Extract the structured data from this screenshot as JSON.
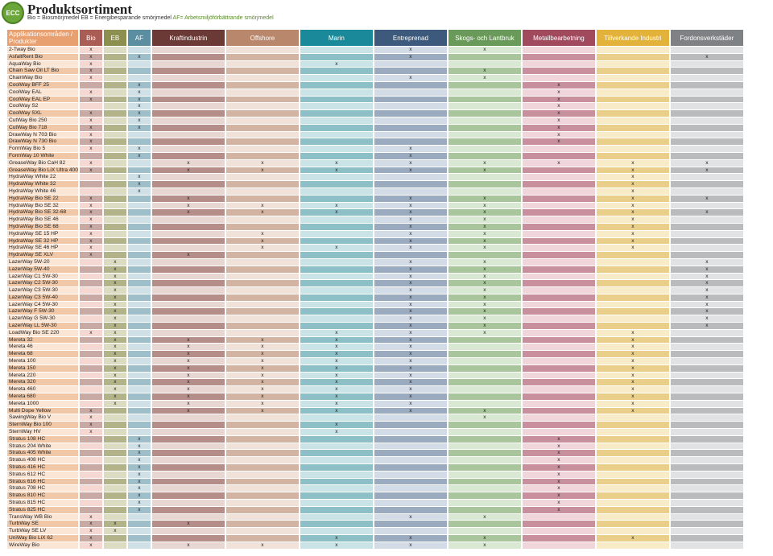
{
  "header": {
    "logo_text": "ECC",
    "title": "Produktsortiment",
    "legend_plain": "Bio = Biosmörjmedel  EB = Energibesparande smörjmedel  ",
    "legend_green": "AF= Arbetsmiljöförbättrande smörjmedel"
  },
  "table": {
    "first_header": "Applikationsområden / Produkter",
    "columns": [
      {
        "label": "Bio",
        "color": "#a95d55",
        "light": "#f6d8d2",
        "dark": "#c9a9a4"
      },
      {
        "label": "EB",
        "color": "#8d8f4f",
        "light": "#dcdcc2",
        "dark": "#b3b38a"
      },
      {
        "label": "AF",
        "color": "#5b8ea0",
        "light": "#cfe0e6",
        "dark": "#9ebfca"
      },
      {
        "label": "Kraftindustrin",
        "color": "#6b3a37",
        "light": "#e8d6d3",
        "dark": "#b58e8a"
      },
      {
        "label": "Offshore",
        "color": "#b8876c",
        "light": "#f1e2d9",
        "dark": "#d3b4a2"
      },
      {
        "label": "Marin",
        "color": "#1a8a9a",
        "light": "#c9e3e7",
        "dark": "#8dbfc6"
      },
      {
        "label": "Entreprenad",
        "color": "#3d5a7c",
        "light": "#d3dbe6",
        "dark": "#9aabc0"
      },
      {
        "label": "Skogs- och Lantbruk",
        "color": "#6a9a5a",
        "light": "#d9e8d2",
        "dark": "#a8c59b"
      },
      {
        "label": "Metallbearbetning",
        "color": "#a14a5e",
        "light": "#f0d5db",
        "dark": "#c8909c"
      },
      {
        "label": "Tillverkande Industri",
        "color": "#e2b23a",
        "light": "#f8ebc8",
        "dark": "#e9cf8a"
      },
      {
        "label": "Fordonsverkstäder",
        "color": "#7f8285",
        "light": "#e1e2e3",
        "dark": "#b9bbbd"
      }
    ],
    "rows": [
      {
        "name": "2-Tway Bio",
        "marks": [
          "x",
          "",
          "",
          "",
          "",
          "",
          "x",
          "x",
          "",
          "",
          ""
        ]
      },
      {
        "name": "AsfaltRent Bio",
        "marks": [
          "x",
          "",
          "x",
          "",
          "",
          "",
          "x",
          "",
          "",
          "",
          "x"
        ]
      },
      {
        "name": "AquaWay Bio",
        "marks": [
          "x",
          "",
          "",
          "",
          "",
          "x",
          "",
          "",
          "",
          "",
          ""
        ]
      },
      {
        "name": "Chain Saw Oil LT Bio",
        "marks": [
          "x",
          "",
          "",
          "",
          "",
          "",
          "",
          "x",
          "",
          "",
          ""
        ]
      },
      {
        "name": "ChainWay Bio",
        "marks": [
          "x",
          "",
          "",
          "",
          "",
          "",
          "x",
          "x",
          "",
          "",
          ""
        ]
      },
      {
        "name": "CoolWay BFF 25",
        "marks": [
          "",
          "",
          "x",
          "",
          "",
          "",
          "",
          "",
          "x",
          "",
          ""
        ]
      },
      {
        "name": "CoolWay EAL",
        "marks": [
          "x",
          "",
          "x",
          "",
          "",
          "",
          "",
          "",
          "x",
          "",
          ""
        ]
      },
      {
        "name": "CoolWay EAL EP",
        "marks": [
          "x",
          "",
          "x",
          "",
          "",
          "",
          "",
          "",
          "x",
          "",
          ""
        ]
      },
      {
        "name": "CoolWay S2",
        "marks": [
          "",
          "",
          "x",
          "",
          "",
          "",
          "",
          "",
          "x",
          "",
          ""
        ]
      },
      {
        "name": "CoolWay SXL",
        "marks": [
          "x",
          "",
          "x",
          "",
          "",
          "",
          "",
          "",
          "x",
          "",
          ""
        ]
      },
      {
        "name": "CutWay Bio 250",
        "marks": [
          "x",
          "",
          "x",
          "",
          "",
          "",
          "",
          "",
          "x",
          "",
          ""
        ]
      },
      {
        "name": "CutWay Bio 718",
        "marks": [
          "x",
          "",
          "x",
          "",
          "",
          "",
          "",
          "",
          "x",
          "",
          ""
        ]
      },
      {
        "name": "DrawWay N 703 Bio",
        "marks": [
          "x",
          "",
          "",
          "",
          "",
          "",
          "",
          "",
          "x",
          "",
          ""
        ]
      },
      {
        "name": "DrawWay N 730 Bio",
        "marks": [
          "x",
          "",
          "",
          "",
          "",
          "",
          "",
          "",
          "x",
          "",
          ""
        ]
      },
      {
        "name": "FormWay Bio 5",
        "marks": [
          "x",
          "",
          "x",
          "",
          "",
          "",
          "x",
          "",
          "",
          "",
          ""
        ]
      },
      {
        "name": "FormWay 10 White",
        "marks": [
          "",
          "",
          "x",
          "",
          "",
          "",
          "x",
          "",
          "",
          "",
          ""
        ]
      },
      {
        "name": "GreaseWay Bio CaH 82",
        "marks": [
          "x",
          "",
          "",
          "x",
          "x",
          "x",
          "x",
          "x",
          "x",
          "x",
          "x"
        ]
      },
      {
        "name": "GreaseWay Bio LiX Ultra 400",
        "marks": [
          "x",
          "",
          "",
          "x",
          "x",
          "x",
          "x",
          "x",
          "",
          "x",
          "x"
        ]
      },
      {
        "name": "HydraWay White 22",
        "marks": [
          "",
          "",
          "x",
          "",
          "",
          "",
          "",
          "",
          "",
          "x",
          ""
        ]
      },
      {
        "name": "HydraWay White 32",
        "marks": [
          "",
          "",
          "x",
          "",
          "",
          "",
          "",
          "",
          "",
          "x",
          ""
        ]
      },
      {
        "name": "HydraWay White 46",
        "marks": [
          "",
          "",
          "x",
          "",
          "",
          "",
          "",
          "",
          "",
          "x",
          ""
        ]
      },
      {
        "name": "HydraWay Bio SE 22",
        "marks": [
          "x",
          "",
          "",
          "x",
          "",
          "",
          "x",
          "x",
          "",
          "x",
          "x"
        ]
      },
      {
        "name": "HydraWay Bio SE 32",
        "marks": [
          "x",
          "",
          "",
          "x",
          "x",
          "x",
          "x",
          "x",
          "",
          "x",
          ""
        ]
      },
      {
        "name": "HydraWay Bio SE 32-68",
        "marks": [
          "x",
          "",
          "",
          "x",
          "x",
          "x",
          "x",
          "x",
          "",
          "x",
          "x"
        ]
      },
      {
        "name": "HydraWay Bio SE 46",
        "marks": [
          "x",
          "",
          "",
          "",
          "",
          "",
          "x",
          "x",
          "",
          "x",
          ""
        ]
      },
      {
        "name": "HydraWay Bio SE 68",
        "marks": [
          "x",
          "",
          "",
          "",
          "",
          "",
          "x",
          "x",
          "",
          "x",
          ""
        ]
      },
      {
        "name": "HydraWay SE 15 HP",
        "marks": [
          "x",
          "",
          "",
          "",
          "x",
          "",
          "x",
          "x",
          "",
          "x",
          ""
        ]
      },
      {
        "name": "HydraWay SE 32 HP",
        "marks": [
          "x",
          "",
          "",
          "",
          "x",
          "",
          "x",
          "x",
          "",
          "x",
          ""
        ]
      },
      {
        "name": "HydraWay SE 46 HP",
        "marks": [
          "x",
          "",
          "",
          "",
          "x",
          "x",
          "x",
          "x",
          "",
          "x",
          ""
        ]
      },
      {
        "name": "HydraWay SE XLV",
        "marks": [
          "x",
          "",
          "",
          "x",
          "",
          "",
          "",
          "",
          "",
          "",
          ""
        ]
      },
      {
        "name": "LazerWay 5W-20",
        "marks": [
          "",
          "x",
          "",
          "",
          "",
          "",
          "x",
          "x",
          "",
          "",
          "x"
        ]
      },
      {
        "name": "LazerWay 5W-40",
        "marks": [
          "",
          "x",
          "",
          "",
          "",
          "",
          "x",
          "x",
          "",
          "",
          "x"
        ]
      },
      {
        "name": "LazerWay C1 5W-30",
        "marks": [
          "",
          "x",
          "",
          "",
          "",
          "",
          "x",
          "x",
          "",
          "",
          "x"
        ]
      },
      {
        "name": "LazerWay C2 5W-30",
        "marks": [
          "",
          "x",
          "",
          "",
          "",
          "",
          "x",
          "x",
          "",
          "",
          "x"
        ]
      },
      {
        "name": "LazerWay C3 5W-30",
        "marks": [
          "",
          "x",
          "",
          "",
          "",
          "",
          "x",
          "x",
          "",
          "",
          "x"
        ]
      },
      {
        "name": "LazerWay C3 5W-40",
        "marks": [
          "",
          "x",
          "",
          "",
          "",
          "",
          "x",
          "x",
          "",
          "",
          "x"
        ]
      },
      {
        "name": "LazerWay C4 5W-30",
        "marks": [
          "",
          "x",
          "",
          "",
          "",
          "",
          "x",
          "x",
          "",
          "",
          "x"
        ]
      },
      {
        "name": "LazerWay F 5W-30",
        "marks": [
          "",
          "x",
          "",
          "",
          "",
          "",
          "x",
          "x",
          "",
          "",
          "x"
        ]
      },
      {
        "name": "LazerWay G 5W-30",
        "marks": [
          "",
          "x",
          "",
          "",
          "",
          "",
          "x",
          "x",
          "",
          "",
          "x"
        ]
      },
      {
        "name": "LazerWay LL 5W-30",
        "marks": [
          "",
          "x",
          "",
          "",
          "",
          "",
          "x",
          "x",
          "",
          "",
          "x"
        ]
      },
      {
        "name": "LoadWay Bio SE 220",
        "marks": [
          "x",
          "x",
          "",
          "",
          "",
          "x",
          "x",
          "x",
          "",
          "x",
          ""
        ]
      },
      {
        "name": "Mereta 32",
        "marks": [
          "",
          "x",
          "",
          "x",
          "x",
          "x",
          "x",
          "",
          "",
          "x",
          ""
        ]
      },
      {
        "name": "Mereta 46",
        "marks": [
          "",
          "x",
          "",
          "x",
          "x",
          "x",
          "x",
          "",
          "",
          "x",
          ""
        ]
      },
      {
        "name": "Mereta 68",
        "marks": [
          "",
          "x",
          "",
          "x",
          "x",
          "x",
          "x",
          "",
          "",
          "x",
          ""
        ]
      },
      {
        "name": "Mereta 100",
        "marks": [
          "",
          "x",
          "",
          "x",
          "x",
          "x",
          "x",
          "",
          "",
          "x",
          ""
        ]
      },
      {
        "name": "Mereta 150",
        "marks": [
          "",
          "x",
          "",
          "x",
          "x",
          "x",
          "x",
          "",
          "",
          "x",
          ""
        ]
      },
      {
        "name": "Mereta 220",
        "marks": [
          "",
          "x",
          "",
          "x",
          "x",
          "x",
          "x",
          "",
          "",
          "x",
          ""
        ]
      },
      {
        "name": "Mereta 320",
        "marks": [
          "",
          "x",
          "",
          "x",
          "x",
          "x",
          "x",
          "",
          "",
          "x",
          ""
        ]
      },
      {
        "name": "Mereta 460",
        "marks": [
          "",
          "x",
          "",
          "x",
          "x",
          "x",
          "x",
          "",
          "",
          "x",
          ""
        ]
      },
      {
        "name": "Mereta 680",
        "marks": [
          "",
          "x",
          "",
          "x",
          "x",
          "x",
          "x",
          "",
          "",
          "x",
          ""
        ]
      },
      {
        "name": "Mereta 1000",
        "marks": [
          "",
          "x",
          "",
          "x",
          "x",
          "x",
          "x",
          "",
          "",
          "x",
          ""
        ]
      },
      {
        "name": "Multi Dope Yellow",
        "marks": [
          "x",
          "",
          "",
          "x",
          "x",
          "x",
          "x",
          "x",
          "",
          "x",
          ""
        ]
      },
      {
        "name": "SawingWay Bio V",
        "marks": [
          "x",
          "",
          "",
          "",
          "",
          "",
          "",
          "x",
          "",
          "",
          ""
        ]
      },
      {
        "name": "SternWay Bio 100",
        "marks": [
          "x",
          "",
          "",
          "",
          "",
          "x",
          "",
          "",
          "",
          "",
          ""
        ]
      },
      {
        "name": "SternWay HV",
        "marks": [
          "x",
          "",
          "",
          "",
          "",
          "x",
          "",
          "",
          "",
          "",
          ""
        ]
      },
      {
        "name": "Stratus 108 HC",
        "marks": [
          "",
          "",
          "x",
          "",
          "",
          "",
          "",
          "",
          "x",
          "",
          ""
        ]
      },
      {
        "name": "Stratus 204 White",
        "marks": [
          "",
          "",
          "x",
          "",
          "",
          "",
          "",
          "",
          "x",
          "",
          ""
        ]
      },
      {
        "name": "Stratus 405 White",
        "marks": [
          "",
          "",
          "x",
          "",
          "",
          "",
          "",
          "",
          "x",
          "",
          ""
        ]
      },
      {
        "name": "Stratus 408 HC",
        "marks": [
          "",
          "",
          "x",
          "",
          "",
          "",
          "",
          "",
          "x",
          "",
          ""
        ]
      },
      {
        "name": "Stratus 416 HC",
        "marks": [
          "",
          "",
          "x",
          "",
          "",
          "",
          "",
          "",
          "x",
          "",
          ""
        ]
      },
      {
        "name": "Stratus 612 HC",
        "marks": [
          "",
          "",
          "x",
          "",
          "",
          "",
          "",
          "",
          "x",
          "",
          ""
        ]
      },
      {
        "name": "Stratus 616 HC",
        "marks": [
          "",
          "",
          "x",
          "",
          "",
          "",
          "",
          "",
          "x",
          "",
          ""
        ]
      },
      {
        "name": "Stratus 708 HC",
        "marks": [
          "",
          "",
          "x",
          "",
          "",
          "",
          "",
          "",
          "x",
          "",
          ""
        ]
      },
      {
        "name": "Stratus 810 HC",
        "marks": [
          "",
          "",
          "x",
          "",
          "",
          "",
          "",
          "",
          "x",
          "",
          ""
        ]
      },
      {
        "name": "Stratus 815 HC",
        "marks": [
          "",
          "",
          "x",
          "",
          "",
          "",
          "",
          "",
          "x",
          "",
          ""
        ]
      },
      {
        "name": "Stratus 825 HC",
        "marks": [
          "",
          "",
          "x",
          "",
          "",
          "",
          "",
          "",
          "x",
          "",
          ""
        ]
      },
      {
        "name": "TransWay WB Bio",
        "marks": [
          "x",
          "",
          "",
          "",
          "",
          "",
          "x",
          "x",
          "",
          "",
          ""
        ]
      },
      {
        "name": "TurbWay SE",
        "marks": [
          "x",
          "x",
          "",
          "x",
          "",
          "",
          "",
          "",
          "",
          "",
          ""
        ]
      },
      {
        "name": "TurbWay SE LV",
        "marks": [
          "x",
          "x",
          "",
          "",
          "",
          "",
          "",
          "",
          "",
          "",
          ""
        ]
      },
      {
        "name": "UniWay Bio LiX 62",
        "marks": [
          "x",
          "",
          "",
          "",
          "",
          "x",
          "x",
          "x",
          "",
          "x",
          ""
        ]
      },
      {
        "name": "WireWay Bio",
        "marks": [
          "x",
          "",
          "",
          "x",
          "x",
          "x",
          "x",
          "x",
          "",
          "",
          ""
        ]
      }
    ]
  }
}
